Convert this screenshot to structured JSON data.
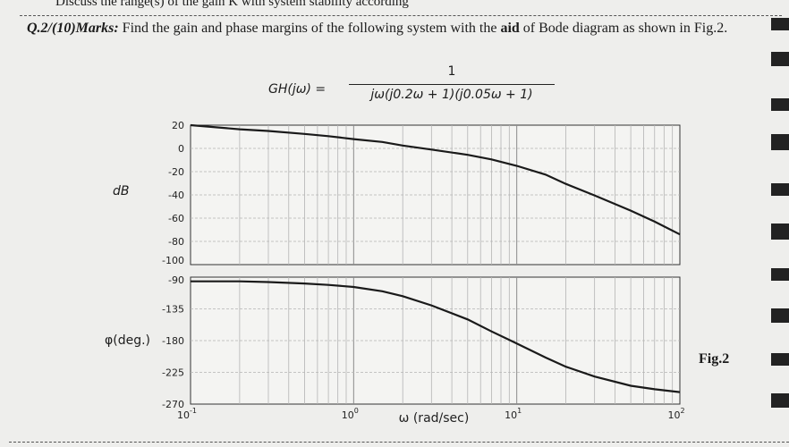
{
  "header": {
    "prev_question_fragment": "Discuss the range(s) of the gain  K  with system stability according"
  },
  "question": {
    "label": "Q.2/(10)Marks:",
    "text_before_bold": " Find the gain and phase margins of the following system with the ",
    "bold_word": "aid",
    "text_after_bold": " of Bode diagram as shown in Fig.2."
  },
  "equation": {
    "lhs": "GH(jω) =",
    "numerator": "1",
    "denominator": "jω(j0.2ω + 1)(j0.05ω + 1)"
  },
  "figure": {
    "caption": "Fig.2",
    "magnitude_ylabel": "dB",
    "phase_ylabel": "φ(deg.)",
    "xlabel": "ω (rad/sec)"
  },
  "chart_data": [
    {
      "type": "line",
      "panel": "magnitude",
      "ylabel": "dB",
      "x_scale": "log",
      "xlim": [
        0.1,
        100
      ],
      "ylim": [
        -100,
        20
      ],
      "yticks": [
        "20",
        "0",
        "-20",
        "-40",
        "-60",
        "-80",
        "-100"
      ],
      "grid": true,
      "series": [
        {
          "x": [
            0.1,
            0.2,
            0.3,
            0.5,
            0.7,
            1,
            1.5,
            2,
            3,
            5,
            7,
            10,
            15,
            20,
            30,
            50,
            70,
            100
          ],
          "values": [
            20,
            16.5,
            15,
            12.5,
            10.5,
            8,
            5.5,
            2.5,
            -1,
            -5.5,
            -9.5,
            -15,
            -22.5,
            -30.5,
            -40.5,
            -53.5,
            -63,
            -74
          ]
        }
      ]
    },
    {
      "type": "line",
      "panel": "phase",
      "ylabel": "φ(deg.)",
      "xlabel": "ω (rad/sec)",
      "x_scale": "log",
      "xlim": [
        0.1,
        100
      ],
      "ylim": [
        -270,
        -90
      ],
      "yticks": [
        "-90",
        "-135",
        "-180",
        "-225",
        "-270"
      ],
      "xticks": [
        "10^-1",
        "10^0",
        "10^1",
        "10^2"
      ],
      "grid": true,
      "series": [
        {
          "x": [
            0.1,
            0.2,
            0.3,
            0.5,
            0.7,
            1,
            1.5,
            2,
            3,
            5,
            7,
            10,
            15,
            20,
            30,
            50,
            70,
            100
          ],
          "values": [
            -96,
            -96,
            -97,
            -99,
            -101,
            -104,
            -110,
            -117,
            -130,
            -150,
            -167,
            -184,
            -204,
            -217,
            -231,
            -244,
            -249,
            -253
          ]
        }
      ]
    }
  ]
}
